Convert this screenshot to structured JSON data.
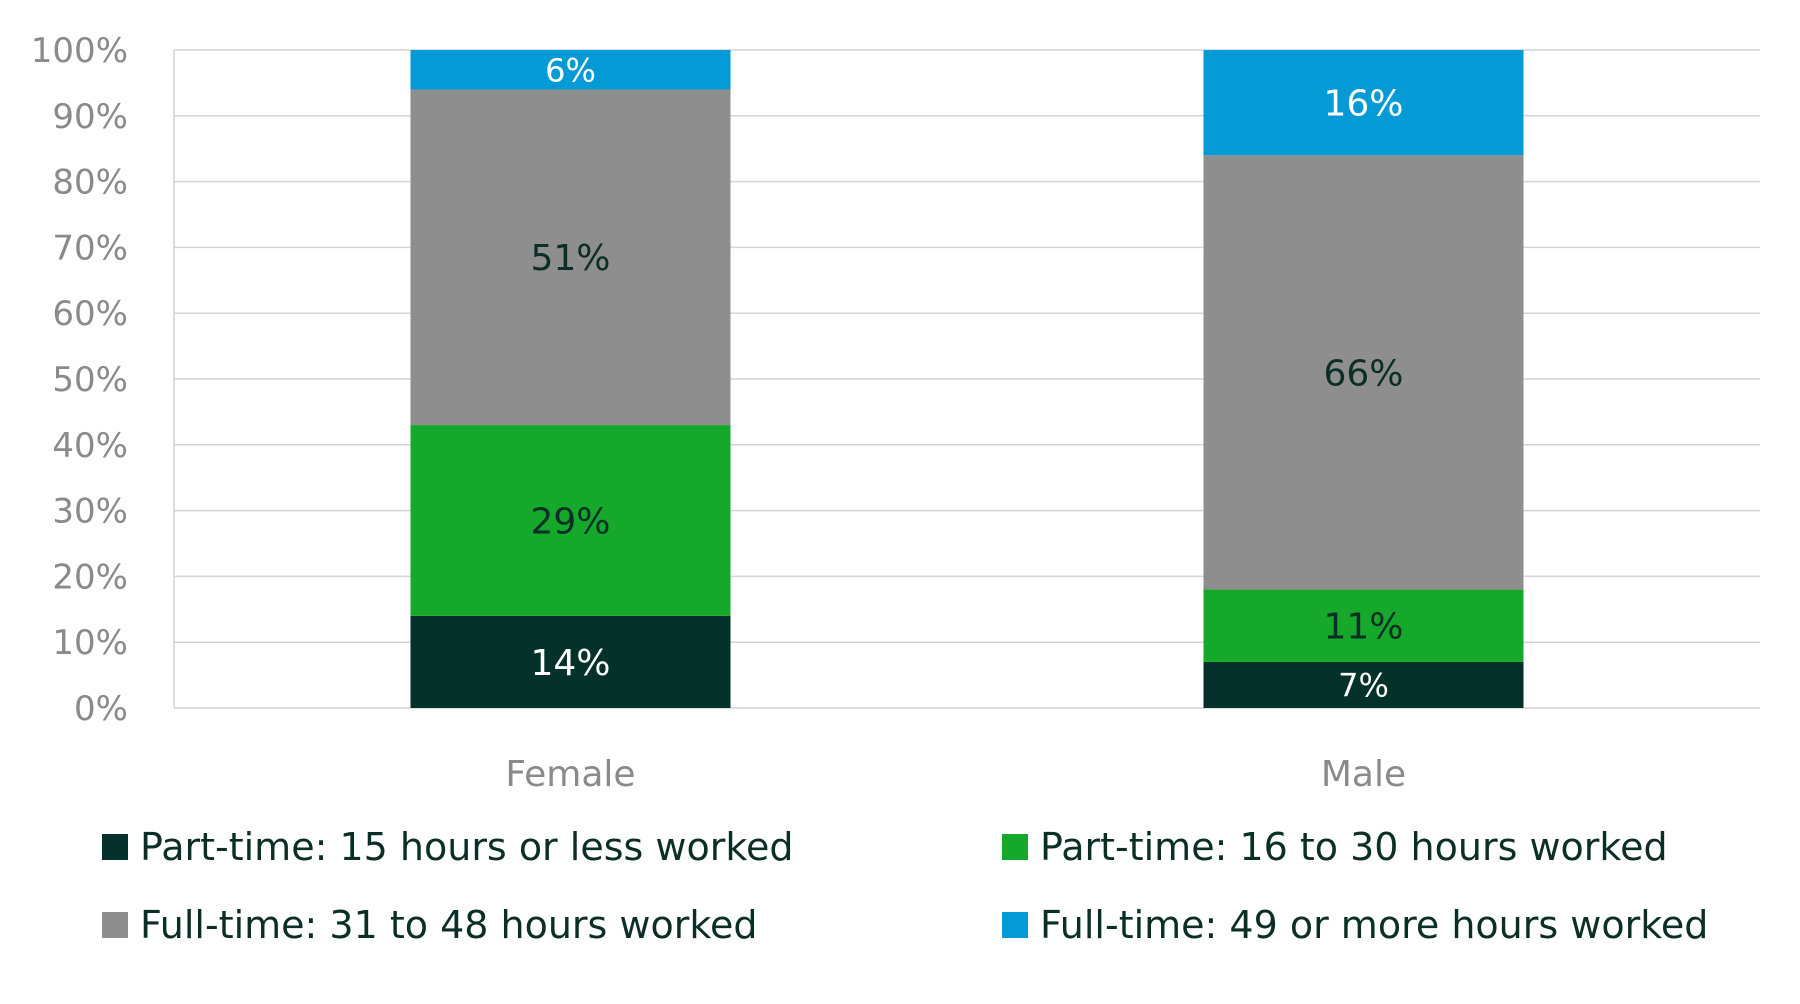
{
  "chart_data": {
    "type": "bar",
    "stacked": true,
    "categories": [
      "Female",
      "Male"
    ],
    "series": [
      {
        "name": "Part-time: 15 hours or less worked",
        "values": [
          14,
          7
        ],
        "labels": [
          "14%",
          "7%"
        ],
        "color": "#04312a",
        "label_color": "#ffffff"
      },
      {
        "name": "Part-time: 16 to 30 hours worked",
        "values": [
          29,
          11
        ],
        "labels": [
          "29%",
          "11%"
        ],
        "color": "#15a82b",
        "label_color": "#0b2e26"
      },
      {
        "name": "Full-time: 31 to 48 hours worked",
        "values": [
          51,
          66
        ],
        "labels": [
          "51%",
          "66%"
        ],
        "color": "#8e8e8e",
        "label_color": "#0b2e26"
      },
      {
        "name": "Full-time: 49 or more hours worked",
        "values": [
          6,
          16
        ],
        "labels": [
          "6%",
          "16%"
        ],
        "color": "#039ad6",
        "label_color": "#ffffff"
      }
    ],
    "yticks": [
      "0%",
      "10%",
      "20%",
      "30%",
      "40%",
      "50%",
      "60%",
      "70%",
      "80%",
      "90%",
      "100%"
    ],
    "ylim": [
      0,
      100
    ],
    "grid": true,
    "legend_position": "bottom",
    "title": "",
    "xlabel": "",
    "ylabel": ""
  }
}
